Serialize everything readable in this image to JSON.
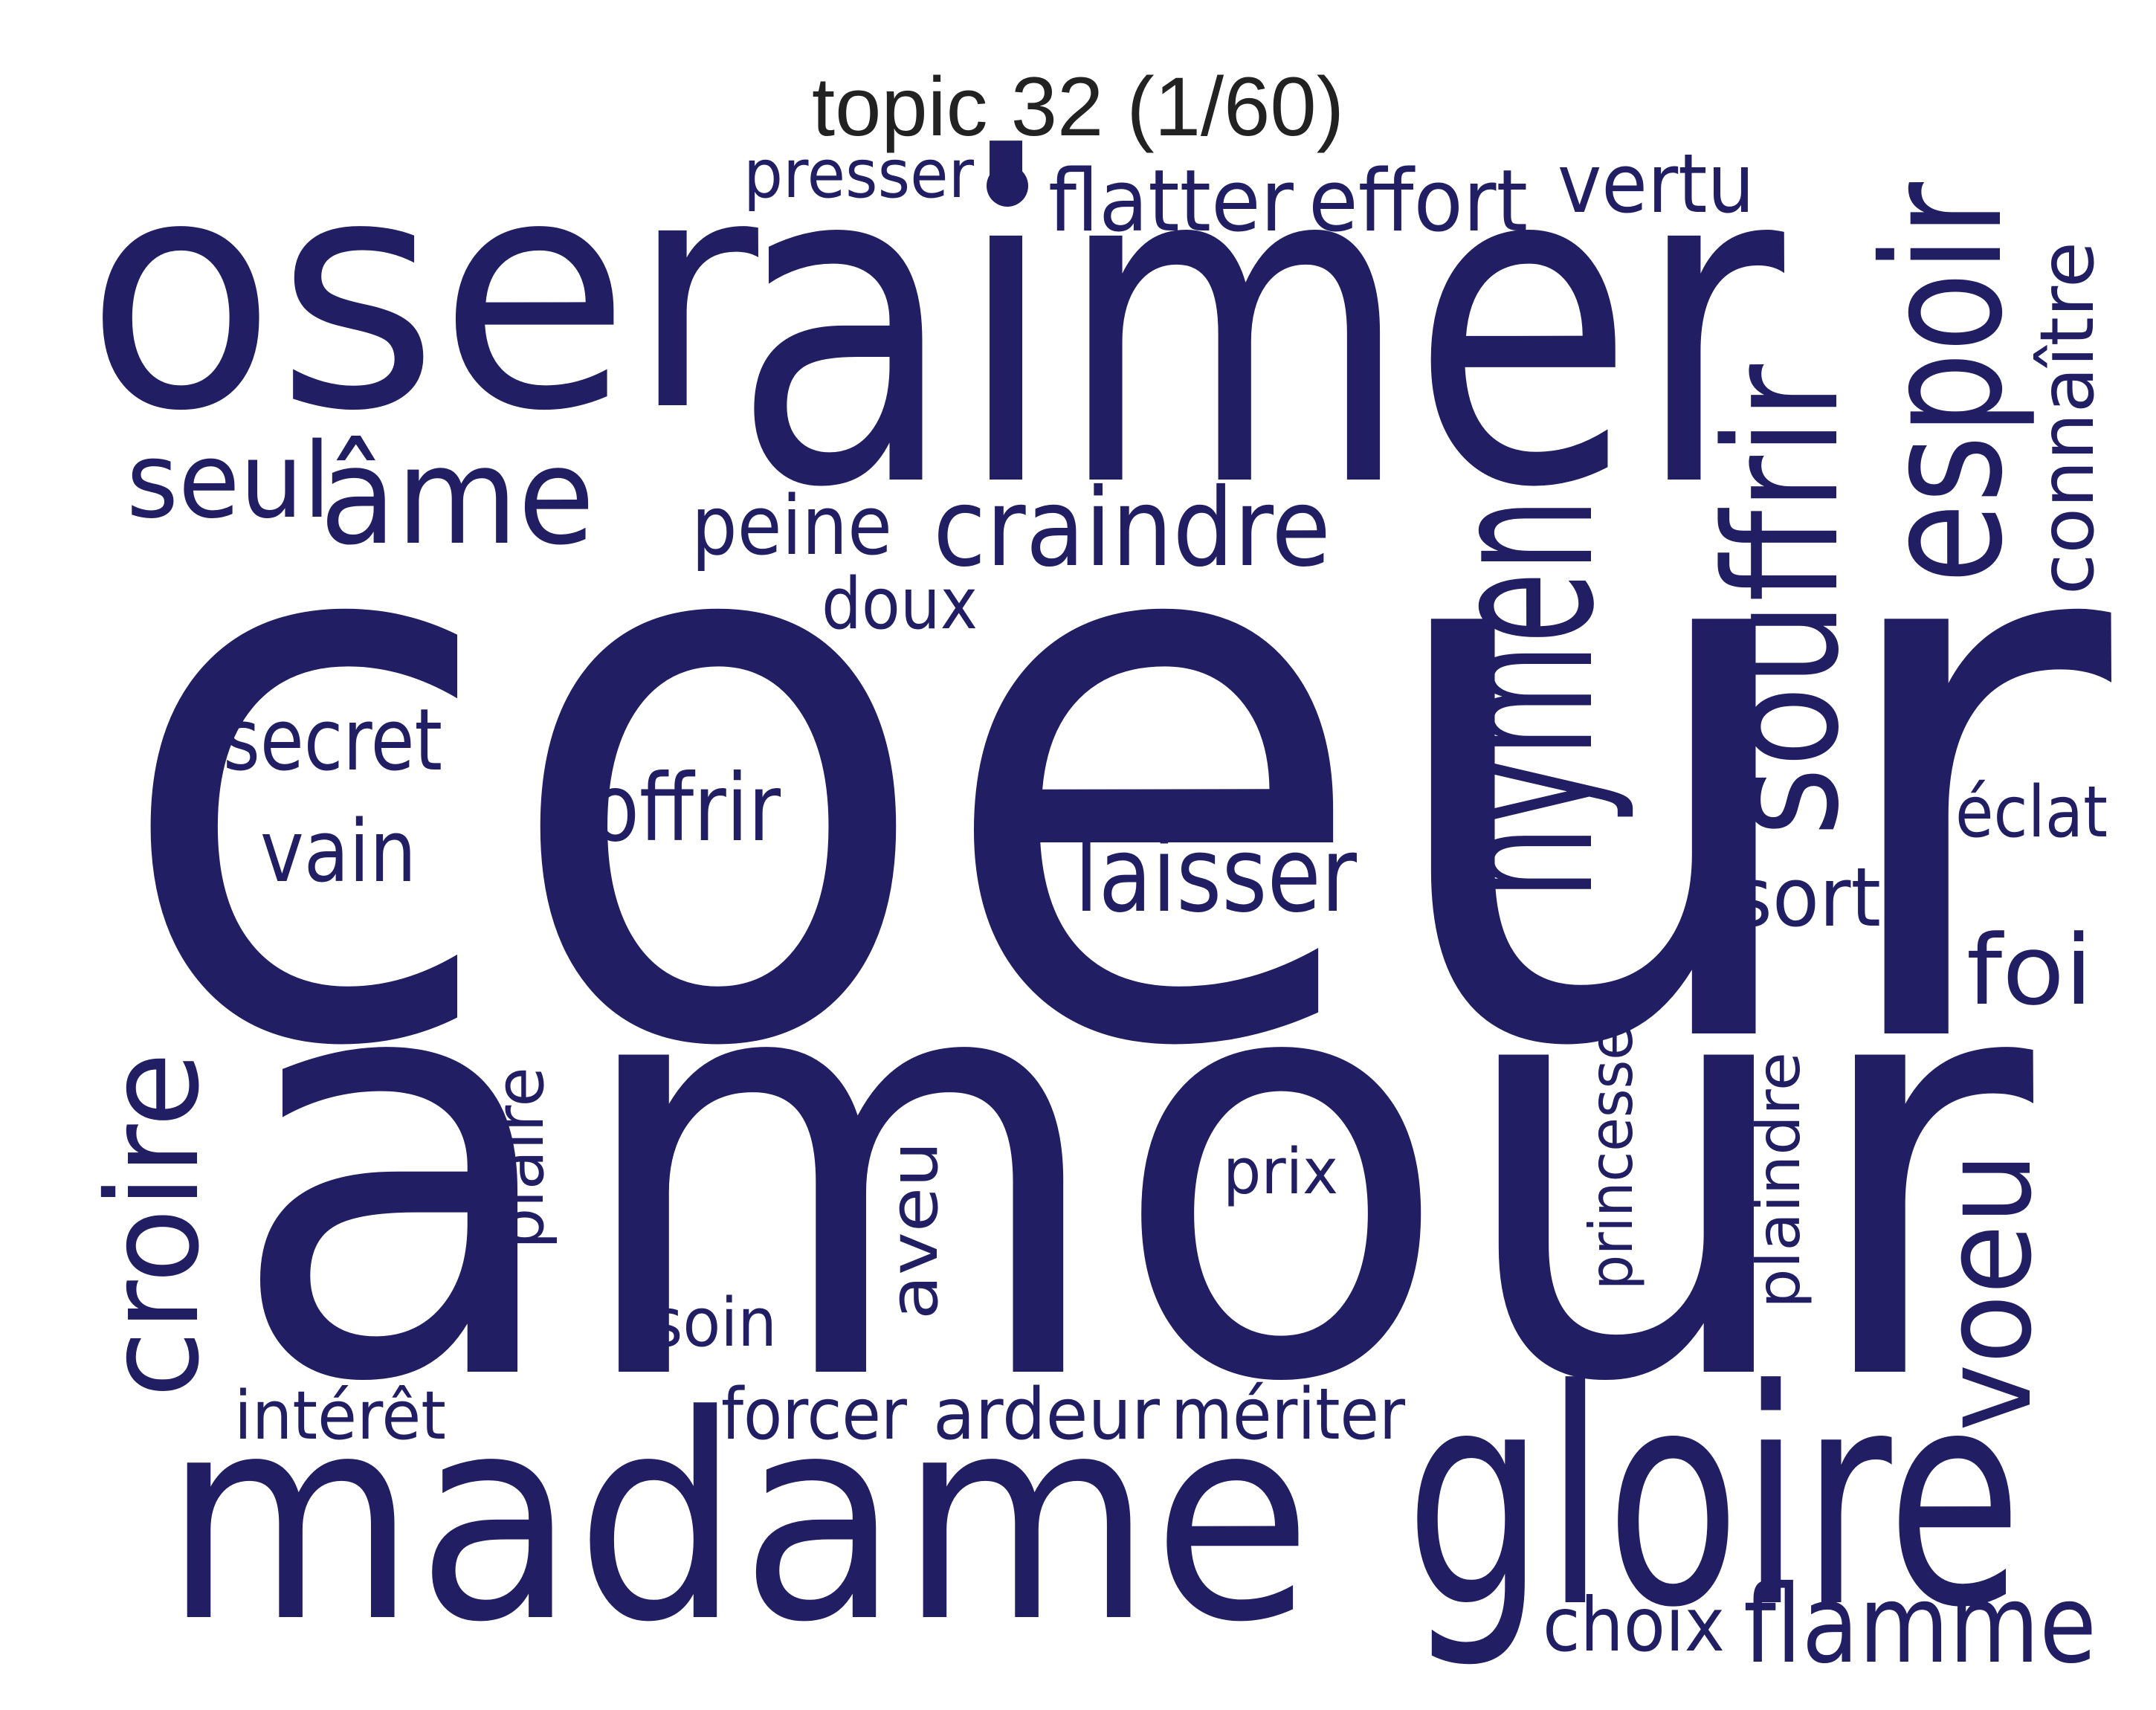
{
  "title": "topic 32 (1/60)",
  "color": "#211e64",
  "words": [
    {
      "id": "coeur",
      "text": "coeur",
      "orientation": "horizontal"
    },
    {
      "id": "amour",
      "text": "amour",
      "orientation": "horizontal"
    },
    {
      "id": "aimer",
      "text": "aimer",
      "orientation": "horizontal"
    },
    {
      "id": "oser",
      "text": "oser",
      "orientation": "horizontal"
    },
    {
      "id": "madame",
      "text": "madame",
      "orientation": "horizontal"
    },
    {
      "id": "gloire",
      "text": "gloire",
      "orientation": "horizontal"
    },
    {
      "id": "hymen",
      "text": "hymen",
      "orientation": "vertical"
    },
    {
      "id": "souffrir",
      "text": "souffrir",
      "orientation": "vertical"
    },
    {
      "id": "espoir",
      "text": "espoir",
      "orientation": "vertical"
    },
    {
      "id": "croire",
      "text": "croire",
      "orientation": "vertical"
    },
    {
      "id": "voeu",
      "text": "voeu",
      "orientation": "vertical"
    },
    {
      "id": "ame",
      "text": "âme",
      "orientation": "horizontal"
    },
    {
      "id": "craindre",
      "text": "craindre",
      "orientation": "horizontal"
    },
    {
      "id": "laisser",
      "text": "laisser",
      "orientation": "horizontal"
    },
    {
      "id": "flamme",
      "text": "flamme",
      "orientation": "horizontal"
    },
    {
      "id": "connaitre",
      "text": "connaître",
      "orientation": "vertical"
    },
    {
      "id": "seul",
      "text": "seul",
      "orientation": "horizontal"
    },
    {
      "id": "flatter",
      "text": "flatter",
      "orientation": "horizontal"
    },
    {
      "id": "effort",
      "text": "effort",
      "orientation": "horizontal"
    },
    {
      "id": "vertu",
      "text": "vertu",
      "orientation": "horizontal"
    },
    {
      "id": "offrir",
      "text": "offrir",
      "orientation": "horizontal"
    },
    {
      "id": "secret",
      "text": "secret",
      "orientation": "horizontal"
    },
    {
      "id": "vain",
      "text": "vain",
      "orientation": "horizontal"
    },
    {
      "id": "foi",
      "text": "foi",
      "orientation": "horizontal"
    },
    {
      "id": "peine",
      "text": "peine",
      "orientation": "horizontal"
    },
    {
      "id": "presser",
      "text": "presser",
      "orientation": "horizontal"
    },
    {
      "id": "doux",
      "text": "doux",
      "orientation": "horizontal"
    },
    {
      "id": "eclat",
      "text": "éclat",
      "orientation": "horizontal"
    },
    {
      "id": "sort",
      "text": "sort",
      "orientation": "horizontal"
    },
    {
      "id": "plaire",
      "text": "plaire",
      "orientation": "vertical"
    },
    {
      "id": "aveu",
      "text": "aveu",
      "orientation": "vertical"
    },
    {
      "id": "prix",
      "text": "prix",
      "orientation": "horizontal"
    },
    {
      "id": "princesse",
      "text": "princesse",
      "orientation": "vertical"
    },
    {
      "id": "plaindre",
      "text": "plaindre",
      "orientation": "vertical"
    },
    {
      "id": "soin",
      "text": "soin",
      "orientation": "horizontal"
    },
    {
      "id": "interet",
      "text": "intérêt",
      "orientation": "horizontal"
    },
    {
      "id": "forcer",
      "text": "forcer",
      "orientation": "horizontal"
    },
    {
      "id": "ardeur",
      "text": "ardeur",
      "orientation": "horizontal"
    },
    {
      "id": "meriter",
      "text": "mériter",
      "orientation": "horizontal"
    },
    {
      "id": "choix",
      "text": "choix",
      "orientation": "horizontal"
    }
  ]
}
